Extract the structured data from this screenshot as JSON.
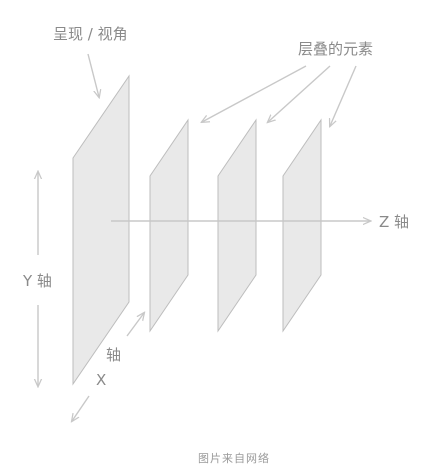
{
  "labels": {
    "view_plane": "呈现 / 视角",
    "stacked_elements": "层叠的元素",
    "z_axis": "Z 轴",
    "y_axis": "Y 轴",
    "x_axis_top": "轴",
    "x_axis_bottom": "X",
    "caption": "图片来自网络"
  },
  "colors": {
    "plane_fill": "#e9e9e9",
    "plane_stroke": "#bdbdbd",
    "arrow": "#c8c8c8",
    "text": "#8a8a8a"
  }
}
